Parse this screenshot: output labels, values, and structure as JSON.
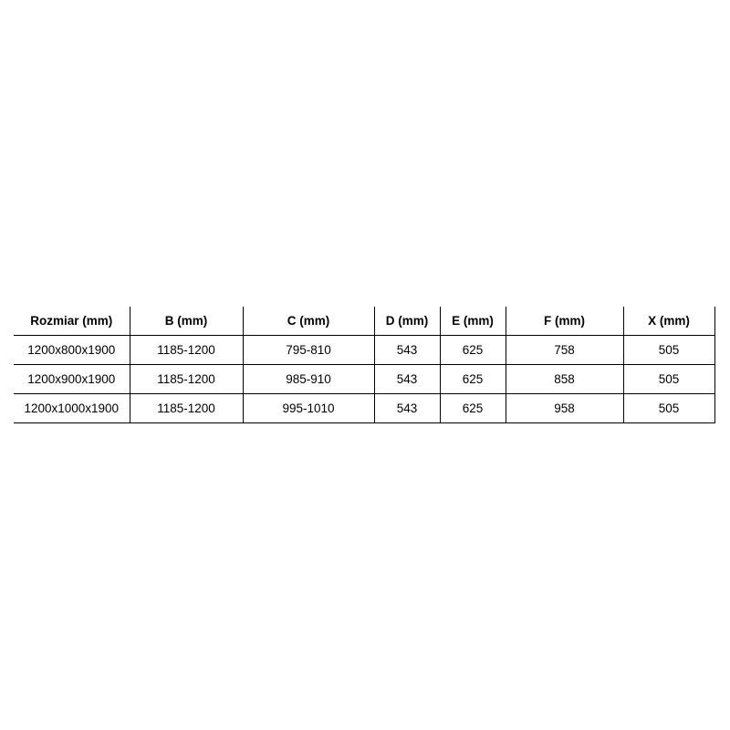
{
  "table": {
    "headers": [
      "Rozmiar (mm)",
      "B (mm)",
      "C (mm)",
      "D (mm)",
      "E (mm)",
      "F (mm)",
      "X (mm)"
    ],
    "rows": [
      [
        "1200x800x1900",
        "1185-1200",
        "795-810",
        "543",
        "625",
        "758",
        "505"
      ],
      [
        "1200x900x1900",
        "1185-1200",
        "985-910",
        "543",
        "625",
        "858",
        "505"
      ],
      [
        "1200x1000x1900",
        "1185-1200",
        "995-1010",
        "543",
        "625",
        "958",
        "505"
      ]
    ]
  }
}
